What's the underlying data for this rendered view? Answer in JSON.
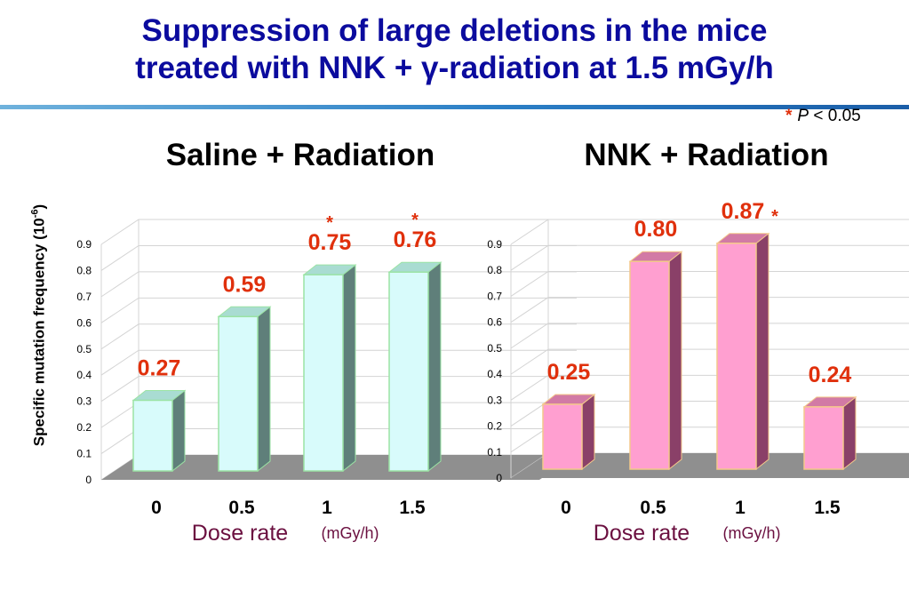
{
  "title_line1": "Suppression of large deletions in the mice",
  "title_line2": "treated with NNK + γ-radiation at 1.5 mGy/h",
  "significance": {
    "symbol": "*",
    "p": "P",
    "text": "< 0.05"
  },
  "ylabel_main": "Specific mutation frequency (10",
  "ylabel_exp": "-6",
  "ylabel_close": ")",
  "chart_data": [
    {
      "type": "bar",
      "title": "Saline + Radiation",
      "categories": [
        "0",
        "0.5",
        "1",
        "1.5"
      ],
      "values": [
        0.27,
        0.59,
        0.75,
        0.76
      ],
      "value_labels": [
        "0.27",
        "0.59",
        "0.75",
        "0.76"
      ],
      "significant": [
        false,
        false,
        true,
        true
      ],
      "xlabel": "Dose rate",
      "xunit": "(mGy/h)",
      "ylim": [
        0,
        0.9
      ],
      "yticks": [
        "0",
        "0.1",
        "0.2",
        "0.3",
        "0.4",
        "0.5",
        "0.6",
        "0.7",
        "0.8",
        "0.9"
      ],
      "colors": {
        "front": "#d8fbfb",
        "side": "#5f7f7a",
        "top": "#a9dcd2",
        "edge": "#9be3a4"
      }
    },
    {
      "type": "bar",
      "title": "NNK + Radiation",
      "categories": [
        "0",
        "0.5",
        "1",
        "1.5"
      ],
      "values": [
        0.25,
        0.8,
        0.87,
        0.24
      ],
      "value_labels": [
        "0.25",
        "0.80",
        "0.87",
        "0.24"
      ],
      "significant": [
        false,
        false,
        true,
        false
      ],
      "xlabel": "Dose rate",
      "xunit": "(mGy/h)",
      "ylim": [
        0,
        0.9
      ],
      "yticks": [
        "0",
        "0.1",
        "0.2",
        "0.3",
        "0.4",
        "0.5",
        "0.6",
        "0.7",
        "0.8",
        "0.9"
      ],
      "colors": {
        "front": "#ff9fd0",
        "side": "#8a4068",
        "top": "#d27aa5",
        "edge": "#f4c98a"
      }
    }
  ],
  "colors": {
    "title": "#0b0b9e",
    "value_label": "#e0300c",
    "dose_label": "#6b1040",
    "floor": "#8f8f8f"
  }
}
